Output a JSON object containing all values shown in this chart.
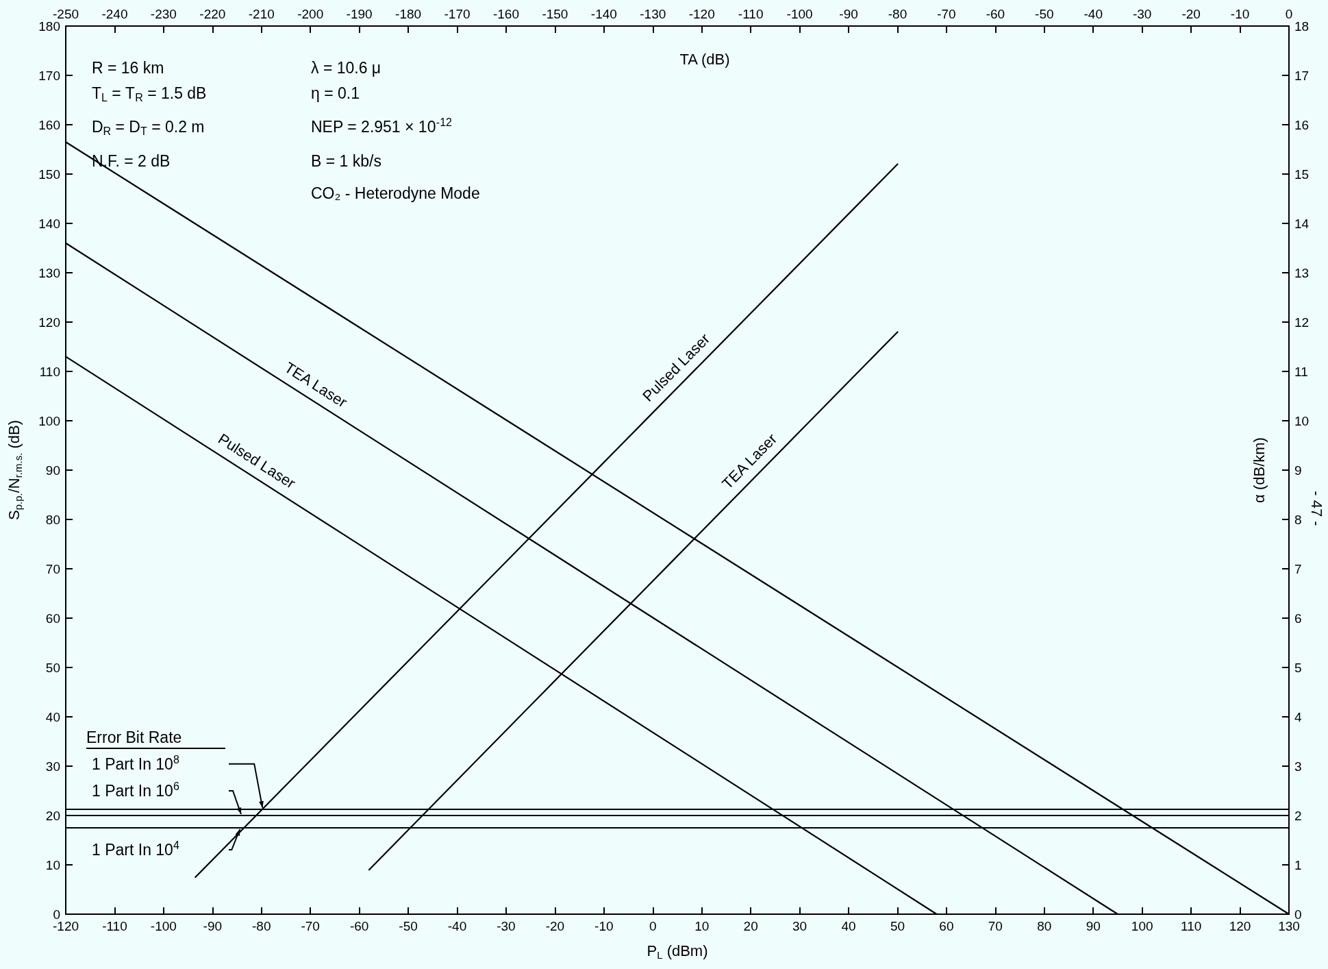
{
  "chart_data": {
    "type": "line",
    "xlabel": "P$_{L}$ (dBm)",
    "ylabel": "S$_{p.p.}$/N$_{r.m.s.}$ (dB)",
    "x2label": "TA (dB)",
    "y2label": "α (dB/km)",
    "xlim": [
      -120,
      130
    ],
    "xticks": [
      -120,
      -110,
      -100,
      -90,
      -80,
      -70,
      -60,
      -50,
      -40,
      -30,
      -20,
      -10,
      0,
      10,
      20,
      30,
      40,
      50,
      60,
      70,
      80,
      90,
      100,
      110,
      120,
      130
    ],
    "ylim": [
      0,
      180
    ],
    "yticks": [
      0,
      10,
      20,
      30,
      40,
      50,
      60,
      70,
      80,
      90,
      100,
      110,
      120,
      130,
      140,
      150,
      160,
      170,
      180
    ],
    "x2lim": [
      -250,
      0
    ],
    "x2ticks": [
      -250,
      -240,
      -230,
      -220,
      -210,
      -200,
      -190,
      -180,
      -170,
      -160,
      -150,
      -140,
      -130,
      -120,
      -110,
      -100,
      -90,
      -80,
      -70,
      -60,
      -50,
      -40,
      -30,
      -20,
      -10,
      0
    ],
    "y2lim": [
      0,
      18
    ],
    "y2ticks": [
      0,
      1,
      2,
      3,
      4,
      5,
      6,
      7,
      8,
      9,
      10,
      11,
      12,
      13,
      14,
      15,
      16,
      17,
      18
    ],
    "grid": false,
    "legend": false,
    "marker": "none",
    "line_style": "solid",
    "series": [
      {
        "color": "#000000",
        "x": [
          -120,
          130
        ],
        "values": [
          156.5,
          0
        ]
      },
      {
        "name": "TEA Laser",
        "color": "#000000",
        "x": [
          -120,
          95
        ],
        "values": [
          136,
          0
        ]
      },
      {
        "name": "Pulsed Laser",
        "color": "#000000",
        "x": [
          -120,
          58
        ],
        "values": [
          113,
          0
        ]
      },
      {
        "name": "Pulsed Laser",
        "color": "#000000",
        "x": [
          -93.5,
          50
        ],
        "values": [
          7.5,
          152
        ]
      },
      {
        "name": "TEA Laser",
        "color": "#000000",
        "x": [
          -58,
          50
        ],
        "values": [
          9,
          118
        ]
      }
    ],
    "ref_lines": [
      {
        "axis": "y",
        "value": 21.3,
        "label": "1 Part In 10$^{8}$",
        "color": "#000000"
      },
      {
        "axis": "y",
        "value": 20,
        "label": "1 Part In 10$^{6}$",
        "color": "#000000"
      },
      {
        "axis": "y",
        "value": 17.5,
        "label": "1 Part In 10$^{4}$",
        "color": "#000000"
      }
    ],
    "annotations": [
      "R = 16 km",
      "T$_{L}$ = T$_{R}$ = 1.5 dB",
      "D$_{R}$ = D$_{T}$ = 0.2 m",
      "N.F. = 2 dB",
      "λ = 10.6 μ",
      "η = 0.1",
      "NEP = 2.951 × 10$^{-12}$",
      "B = 1 kb/s",
      "CO₂ - Heterodyne Mode",
      "Error Bit Rate",
      "- 47 -"
    ]
  }
}
